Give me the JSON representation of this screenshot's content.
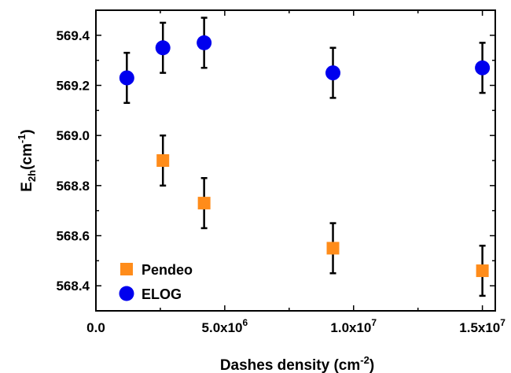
{
  "chart_data": {
    "type": "scatter",
    "xlabel": {
      "main": "Dashes density (cm",
      "sup": "-2",
      "close": ")"
    },
    "ylabel": {
      "main": "E",
      "sub": "2h",
      "mid": "(cm",
      "sup": "-1",
      "close": ")"
    },
    "xlim": [
      0,
      15500000
    ],
    "ylim": [
      568.3,
      569.5
    ],
    "x_ticks": [
      {
        "value": 0,
        "label": "0.0",
        "sup": ""
      },
      {
        "value": 5000000,
        "label": "5.0x10",
        "sup": "6"
      },
      {
        "value": 10000000,
        "label": "1.0x10",
        "sup": "7"
      },
      {
        "value": 15000000,
        "label": "1.5x10",
        "sup": "7"
      }
    ],
    "y_ticks": [
      {
        "value": 568.4,
        "label": "568.4"
      },
      {
        "value": 568.6,
        "label": "568.6"
      },
      {
        "value": 568.8,
        "label": "568.8"
      },
      {
        "value": 569.0,
        "label": "569.0"
      },
      {
        "value": 569.2,
        "label": "569.2"
      },
      {
        "value": 569.4,
        "label": "569.4"
      }
    ],
    "grid": false,
    "legend_position": "bottom-left",
    "series": [
      {
        "name": "Pendeo",
        "marker": "square",
        "color": "#FF8C1A",
        "points": [
          {
            "x": 2600000,
            "y": 568.9,
            "err": 0.1
          },
          {
            "x": 4200000,
            "y": 568.73,
            "err": 0.1
          },
          {
            "x": 9200000,
            "y": 568.55,
            "err": 0.1
          },
          {
            "x": 15000000,
            "y": 568.46,
            "err": 0.1
          }
        ]
      },
      {
        "name": "ELOG",
        "marker": "circle",
        "color": "#0000EE",
        "points": [
          {
            "x": 1200000,
            "y": 569.23,
            "err": 0.1
          },
          {
            "x": 2600000,
            "y": 569.35,
            "err": 0.1
          },
          {
            "x": 4200000,
            "y": 569.37,
            "err": 0.1
          },
          {
            "x": 9200000,
            "y": 569.25,
            "err": 0.1
          },
          {
            "x": 15000000,
            "y": 569.27,
            "err": 0.1
          }
        ]
      }
    ]
  }
}
